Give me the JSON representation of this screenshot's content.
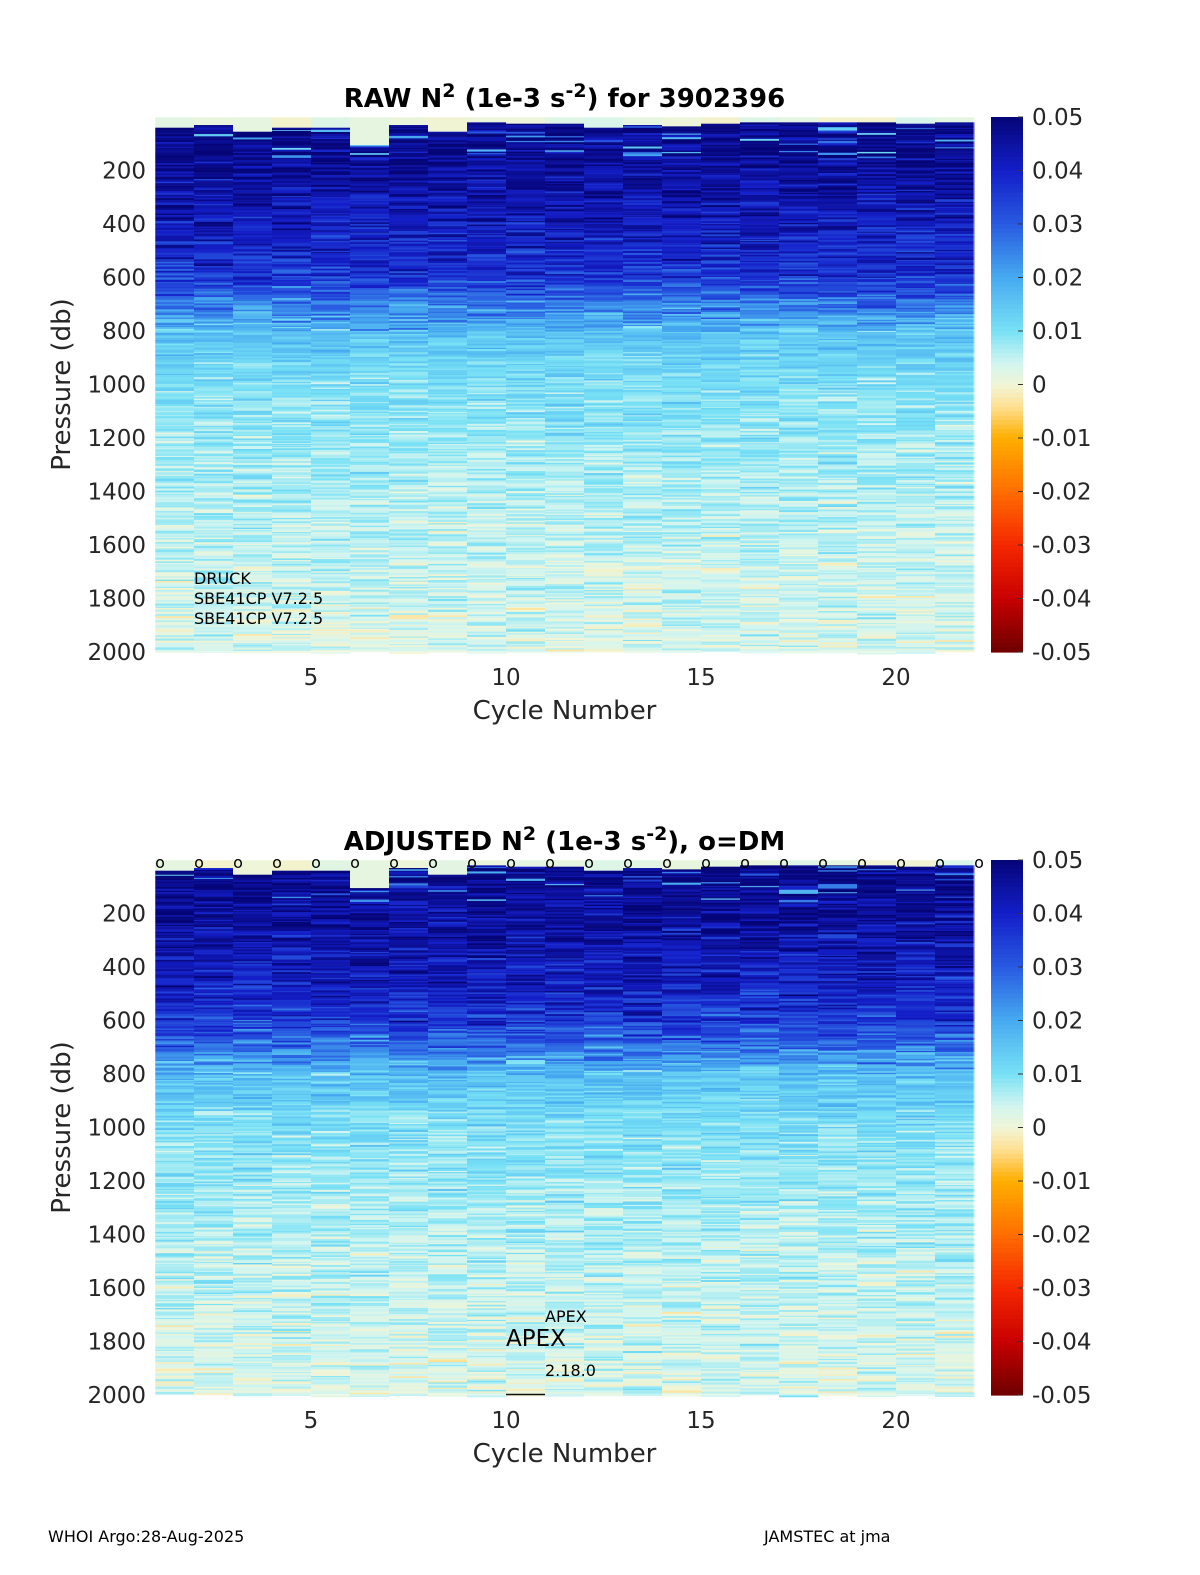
{
  "chart_data": [
    {
      "type": "heatmap",
      "title": "RAW N2 (1e-3 s-2) for 3902396",
      "title_parts": {
        "pre": "RAW N",
        "sup1": "2",
        "mid": " (1e-3 s",
        "sup2": "-2",
        "post": ") for 3902396"
      },
      "xlabel": "Cycle Number",
      "ylabel": "Pressure (db)",
      "xlim": [
        1,
        22
      ],
      "ylim": [
        2000,
        0
      ],
      "y_reversed": true,
      "xticks": [
        5,
        10,
        15,
        20
      ],
      "xtick_labels": [
        "5",
        "10",
        "15",
        "20"
      ],
      "yticks": [
        200,
        400,
        600,
        800,
        1000,
        1200,
        1400,
        1600,
        1800,
        2000
      ],
      "ytick_labels": [
        "200",
        "400",
        "600",
        "800",
        "1000",
        "1200",
        "1400",
        "1600",
        "1800",
        "2000"
      ],
      "colorbar": {
        "clim": [
          -0.05,
          0.05
        ],
        "ticks": [
          0.05,
          0.04,
          0.03,
          0.02,
          0.01,
          0,
          -0.01,
          -0.02,
          -0.03,
          -0.04,
          -0.05
        ],
        "tick_labels": [
          "0.05",
          "0.04",
          "0.03",
          "0.02",
          "0.01",
          "0",
          "-0.01",
          "-0.02",
          "-0.03",
          "-0.04",
          "-0.05"
        ],
        "colormap": "blue-white-red"
      },
      "cycles": [
        1,
        2,
        3,
        4,
        5,
        6,
        7,
        8,
        9,
        10,
        11,
        12,
        13,
        14,
        15,
        16,
        17,
        18,
        19,
        20,
        21
      ],
      "top_pressure": [
        40,
        30,
        55,
        40,
        40,
        105,
        30,
        55,
        20,
        25,
        25,
        40,
        30,
        35,
        25,
        20,
        20,
        20,
        20,
        25,
        20
      ],
      "profile_n2": [
        {
          "pressure": [
            100,
            400,
            600,
            800,
            1000,
            1400,
            2000
          ],
          "n2": [
            0.048,
            0.042,
            0.036,
            0.016,
            0.01,
            0.006,
            0.003
          ]
        }
      ],
      "annotations": [
        "DRUCK",
        "SBE41CP V7.2.5",
        "SBE41CP V7.2.5"
      ]
    },
    {
      "type": "heatmap",
      "title": "ADJUSTED N2 (1e-3 s-2), o=DM",
      "title_parts": {
        "pre": "ADJUSTED N",
        "sup1": "2",
        "mid": " (1e-3 s",
        "sup2": "-2",
        "post": "), o=DM"
      },
      "xlabel": "Cycle Number",
      "ylabel": "Pressure (db)",
      "xlim": [
        1,
        22
      ],
      "ylim": [
        2000,
        0
      ],
      "y_reversed": true,
      "xticks": [
        5,
        10,
        15,
        20
      ],
      "xtick_labels": [
        "5",
        "10",
        "15",
        "20"
      ],
      "yticks": [
        200,
        400,
        600,
        800,
        1000,
        1200,
        1400,
        1600,
        1800,
        2000
      ],
      "ytick_labels": [
        "200",
        "400",
        "600",
        "800",
        "1000",
        "1200",
        "1400",
        "1600",
        "1800",
        "2000"
      ],
      "colorbar": {
        "clim": [
          -0.05,
          0.05
        ],
        "ticks": [
          0.05,
          0.04,
          0.03,
          0.02,
          0.01,
          0,
          -0.01,
          -0.02,
          -0.03,
          -0.04,
          -0.05
        ],
        "tick_labels": [
          "0.05",
          "0.04",
          "0.03",
          "0.02",
          "0.01",
          "0",
          "-0.01",
          "-0.02",
          "-0.03",
          "-0.04",
          "-0.05"
        ],
        "colormap": "blue-white-red"
      },
      "cycles": [
        1,
        2,
        3,
        4,
        5,
        6,
        7,
        8,
        9,
        10,
        11,
        12,
        13,
        14,
        15,
        16,
        17,
        18,
        19,
        20,
        21
      ],
      "top_pressure": [
        40,
        30,
        55,
        40,
        40,
        105,
        30,
        55,
        20,
        25,
        25,
        40,
        30,
        35,
        25,
        20,
        20,
        20,
        20,
        25,
        20
      ],
      "dm_marker": "o",
      "dm_cycles": [
        1,
        2,
        3,
        4,
        5,
        6,
        7,
        8,
        9,
        10,
        11,
        12,
        13,
        14,
        15,
        16,
        17,
        18,
        19,
        20,
        21,
        22
      ],
      "annotations_small": [
        "APEX",
        "2.18.0"
      ],
      "annotation_large": "APEX"
    }
  ],
  "footer": {
    "left": "WHOI Argo:28-Aug-2025",
    "right": "JAMSTEC at jma"
  }
}
